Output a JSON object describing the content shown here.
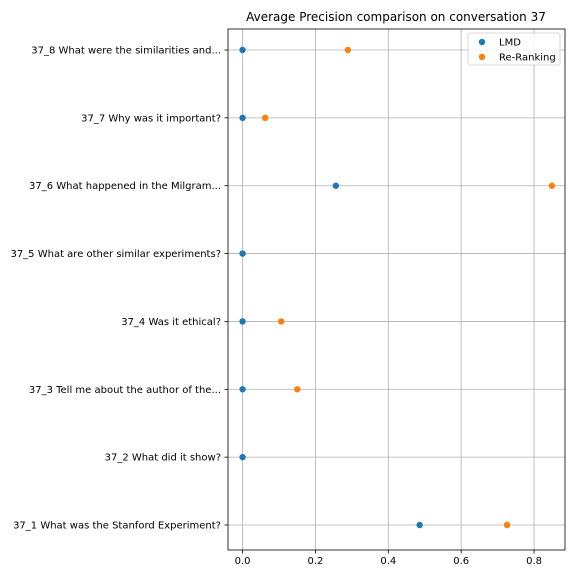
{
  "chart_data": {
    "type": "scatter",
    "title": "Average Precision comparison on conversation 37",
    "xlabel": "",
    "ylabel": "",
    "xlim": [
      -0.04,
      0.885
    ],
    "xticks": [
      0.0,
      0.2,
      0.4,
      0.6,
      0.8
    ],
    "xtick_labels": [
      "0.0",
      "0.2",
      "0.4",
      "0.6",
      "0.8"
    ],
    "categories": [
      "37_1 What was the Stanford Experiment?",
      "37_2 What did it show?",
      "37_3 Tell me about the author of the...",
      "37_4 Was it ethical?",
      "37_5 What are other similar experiments?",
      "37_6 What happened in the Milgram...",
      "37_7 Why was it important?",
      "37_8 What were the similarities and..."
    ],
    "series": [
      {
        "name": "LMD",
        "color": "#1f77b4",
        "values": [
          0.486,
          0.0,
          0.0,
          0.0,
          0.0,
          0.256,
          0.0,
          0.0
        ]
      },
      {
        "name": "Re-Ranking",
        "color": "#ff7f0e",
        "values": [
          0.726,
          null,
          0.15,
          0.106,
          null,
          0.849,
          0.062,
          0.289
        ]
      }
    ],
    "grid": true,
    "legend_position": "top-right"
  }
}
